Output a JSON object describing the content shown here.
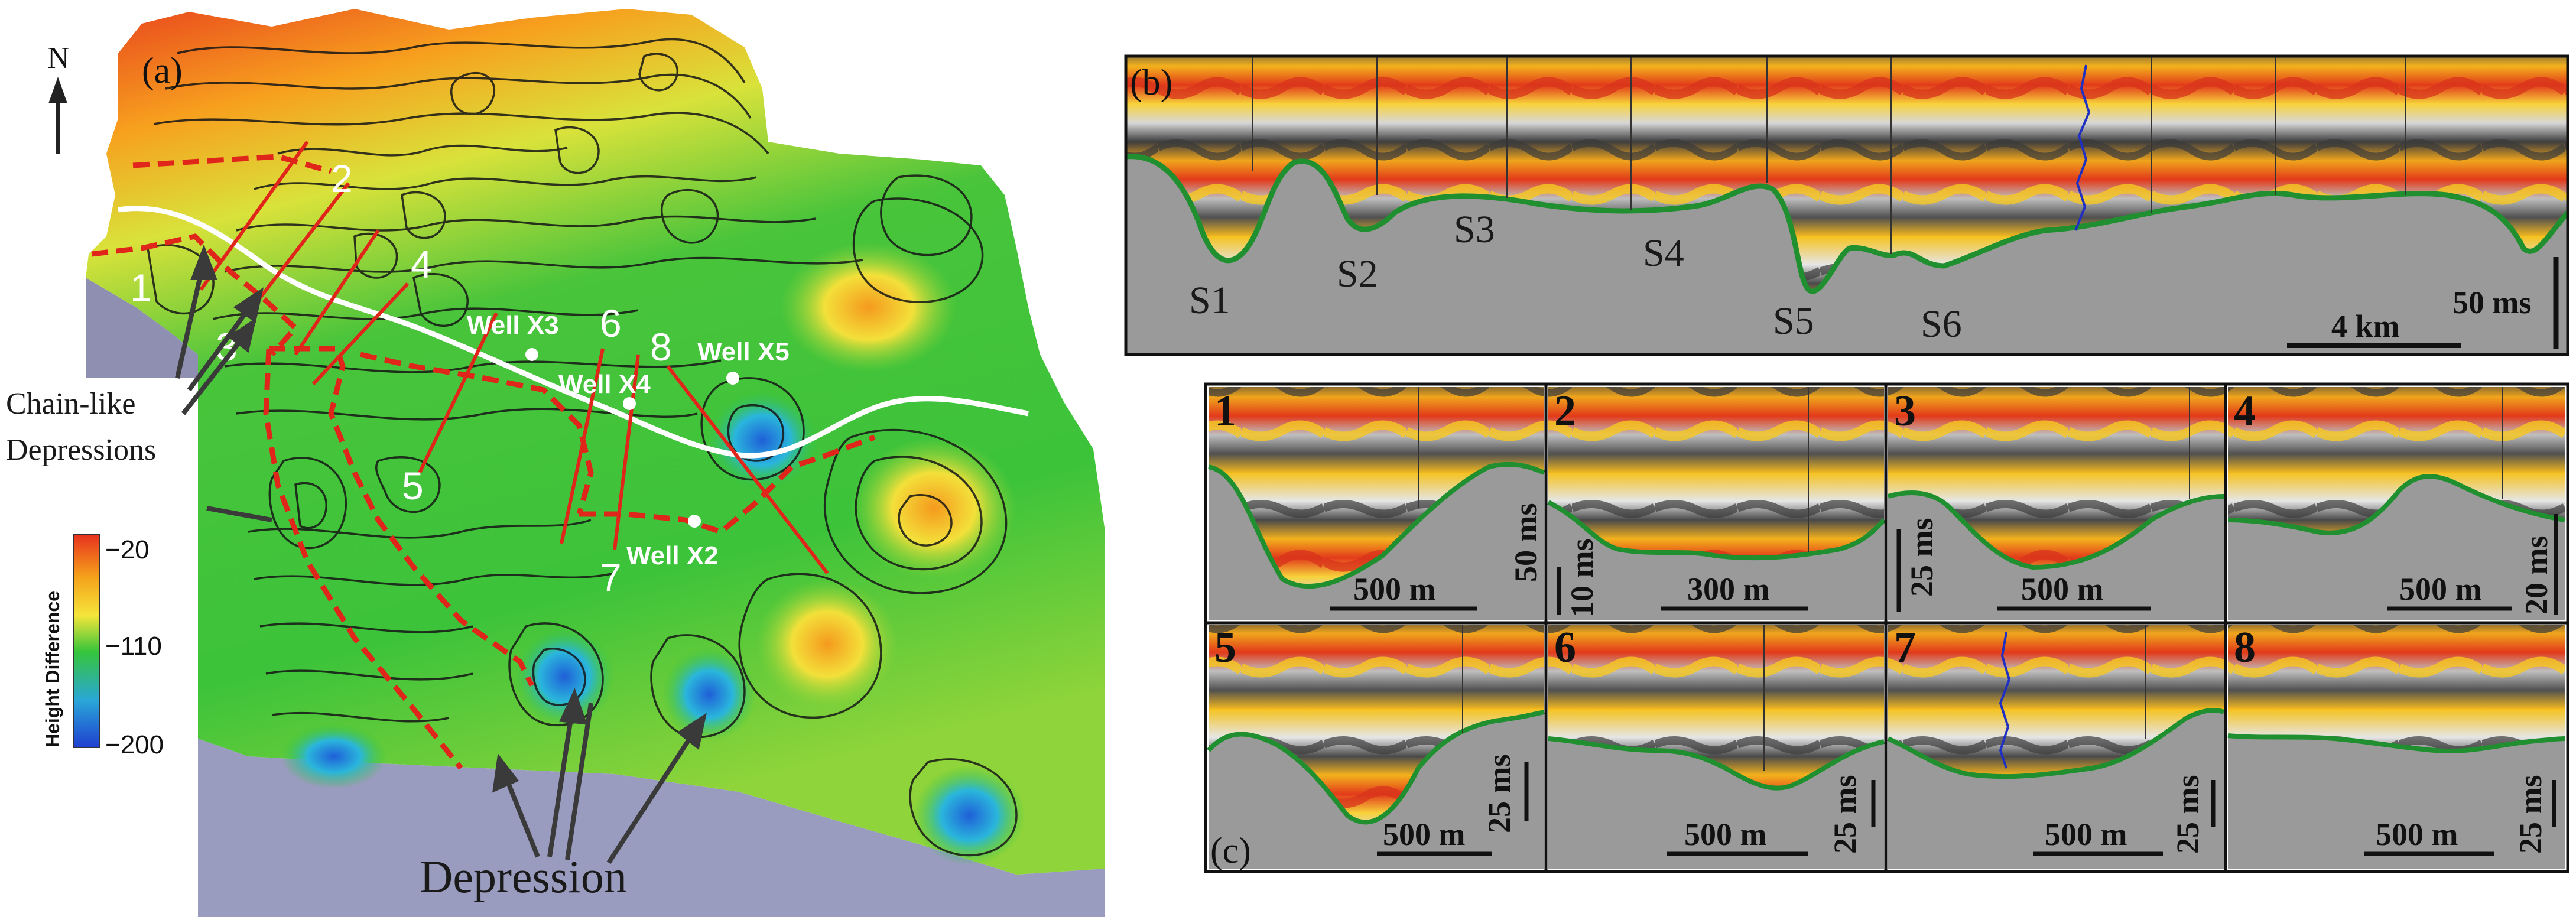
{
  "panel_a": {
    "label": "(a)",
    "north_label": "N",
    "wells": [
      {
        "name": "Well X3"
      },
      {
        "name": "Well X4"
      },
      {
        "name": "Well X5"
      },
      {
        "name": "Well X2"
      }
    ],
    "section_lines": [
      "1",
      "2",
      "3",
      "4",
      "5",
      "6",
      "7",
      "8"
    ],
    "annotations": {
      "chain_line1": "Chain-like",
      "chain_line2": "Depressions",
      "depression": "Depression"
    },
    "legend": {
      "title": "Height Difference",
      "ticks": [
        "−20",
        "−110",
        "−200"
      ],
      "colors": [
        "#e8321e",
        "#f5a21b",
        "#f5e53a",
        "#35c53a",
        "#2aa6d8",
        "#1f3fd0"
      ]
    }
  },
  "panel_b": {
    "label": "(b)",
    "sections": [
      "S1",
      "S2",
      "S3",
      "S4",
      "S5",
      "S6"
    ],
    "scale_h": "4 km",
    "scale_v": "50 ms"
  },
  "panel_c": {
    "label": "(c)",
    "tiles": [
      {
        "num": "1",
        "h": "500 m",
        "v": "50 ms"
      },
      {
        "num": "2",
        "h": "300 m",
        "v": "10 ms"
      },
      {
        "num": "3",
        "h": "500 m",
        "v": "25 ms"
      },
      {
        "num": "4",
        "h": "500 m",
        "v": "20 ms"
      },
      {
        "num": "5",
        "h": "500 m",
        "v": "25 ms"
      },
      {
        "num": "6",
        "h": "500 m",
        "v": "25 ms"
      },
      {
        "num": "7",
        "h": "500 m",
        "v": "25 ms"
      },
      {
        "num": "8",
        "h": "500 m",
        "v": "25 ms"
      }
    ]
  },
  "colors": {
    "seismic_red": "#e23a1a",
    "seismic_yellow": "#f7c31c",
    "seismic_gray": "#5a5a5a",
    "mask_gray": "#9a9a9a",
    "horizon_green": "#1f8f2f",
    "section_red": "#e0261b"
  }
}
